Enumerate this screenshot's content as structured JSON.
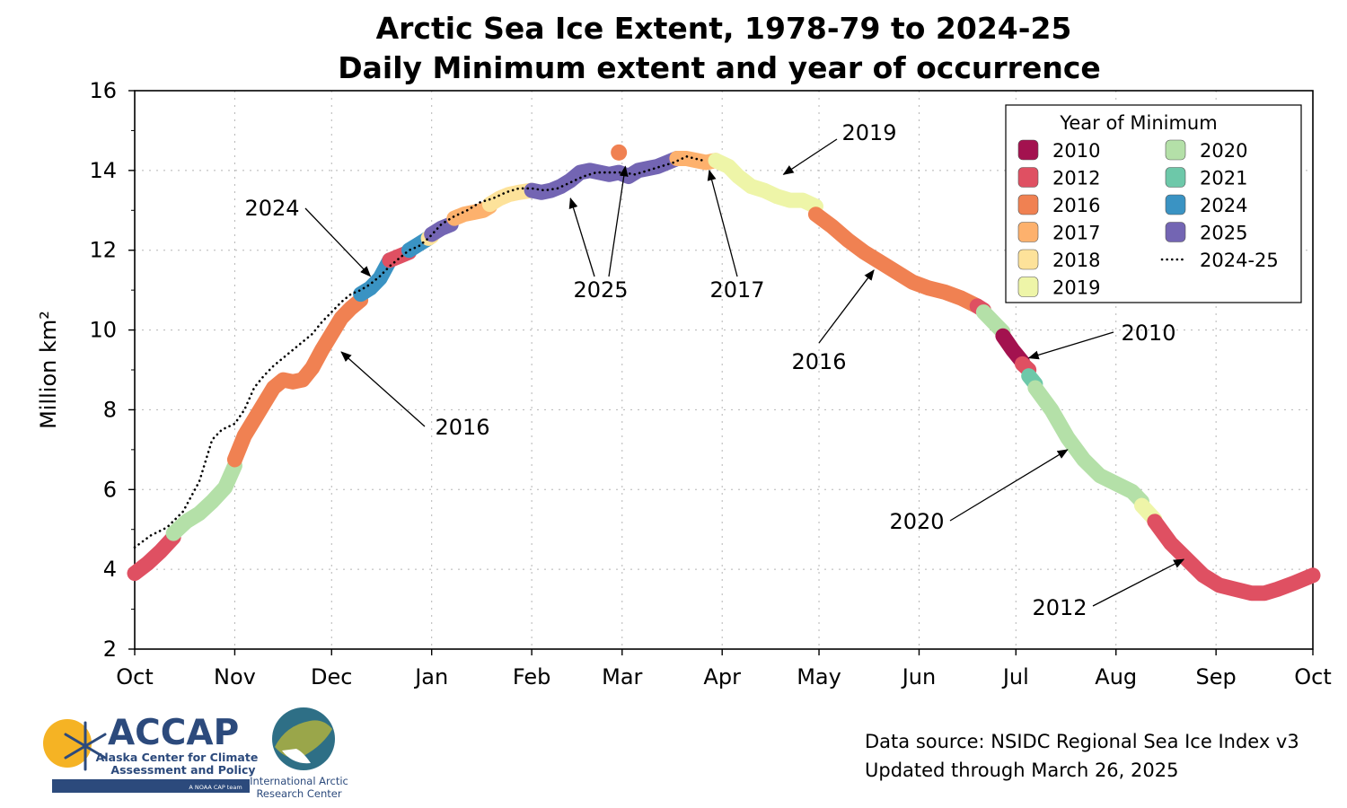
{
  "chart_data": {
    "type": "line",
    "title": "Arctic Sea Ice Extent, 1978-79 to 2024-25",
    "subtitle": "Daily Minimum extent and year of occurrence",
    "xlabel": "",
    "ylabel": "Million km²",
    "ylim": [
      2,
      16
    ],
    "yticks": [
      2,
      4,
      6,
      8,
      10,
      12,
      14,
      16
    ],
    "xlim": [
      "Oct 1",
      "Oct 1"
    ],
    "xticks": [
      "Oct",
      "Nov",
      "Dec",
      "Jan",
      "Feb",
      "Mar",
      "Apr",
      "May",
      "Jun",
      "Jul",
      "Aug",
      "Sep",
      "Oct"
    ],
    "grid": true,
    "legend_title": "Year of Minimum",
    "legend_placement": "top-right",
    "series": [
      {
        "name": "Daily minimum",
        "style": "thick colored by year of minimum",
        "segments": [
          {
            "year": "2012",
            "x": [
              "Oct 1",
              "Oct 5",
              "Oct 9",
              "Oct 13"
            ],
            "y": [
              3.9,
              4.15,
              4.45,
              4.8
            ]
          },
          {
            "year": "2020",
            "x": [
              "Oct 13",
              "Oct 17",
              "Oct 21",
              "Oct 25",
              "Oct 29",
              "Nov 1"
            ],
            "y": [
              4.9,
              5.2,
              5.4,
              5.7,
              6.05,
              6.6
            ]
          },
          {
            "year": "2016",
            "x": [
              "Nov 1",
              "Nov 4",
              "Nov 7",
              "Nov 10",
              "Nov 13",
              "Nov 16",
              "Nov 19",
              "Nov 22",
              "Nov 25",
              "Nov 28",
              "Dec 1",
              "Dec 4",
              "Dec 7",
              "Dec 10"
            ],
            "y": [
              6.75,
              7.35,
              7.75,
              8.15,
              8.55,
              8.75,
              8.7,
              8.75,
              9.05,
              9.5,
              9.9,
              10.3,
              10.55,
              10.75
            ]
          },
          {
            "year": "2024",
            "x": [
              "Dec 10",
              "Dec 13",
              "Dec 16",
              "Dec 19"
            ],
            "y": [
              10.9,
              11.05,
              11.3,
              11.75
            ]
          },
          {
            "year": "2012",
            "x": [
              "Dec 19",
              "Dec 22",
              "Dec 25"
            ],
            "y": [
              11.75,
              11.85,
              11.95
            ]
          },
          {
            "year": "2024",
            "x": [
              "Dec 25",
              "Dec 28",
              "Dec 31"
            ],
            "y": [
              12.0,
              12.15,
              12.3
            ]
          },
          {
            "year": "2018",
            "x": [
              "Dec 31",
              "Jan 1"
            ],
            "y": [
              12.3,
              12.35
            ]
          },
          {
            "year": "2025",
            "x": [
              "Jan 1",
              "Jan 4",
              "Jan 7"
            ],
            "y": [
              12.4,
              12.55,
              12.65
            ]
          },
          {
            "year": "2017",
            "x": [
              "Jan 8",
              "Jan 11",
              "Jan 14",
              "Jan 17",
              "Jan 19"
            ],
            "y": [
              12.8,
              12.9,
              12.95,
              13.0,
              13.1
            ]
          },
          {
            "year": "2018",
            "x": [
              "Jan 19",
              "Jan 22",
              "Jan 25",
              "Jan 28",
              "Feb 1"
            ],
            "y": [
              13.15,
              13.3,
              13.4,
              13.45,
              13.5
            ]
          },
          {
            "year": "2025",
            "x": [
              "Feb 1",
              "Feb 4",
              "Feb 7",
              "Feb 10",
              "Feb 13",
              "Feb 16",
              "Feb 19",
              "Feb 22",
              "Feb 25",
              "Feb 28",
              "Mar 3",
              "Mar 6",
              "Mar 9",
              "Mar 12",
              "Mar 15",
              "Mar 18"
            ],
            "y": [
              13.5,
              13.45,
              13.5,
              13.6,
              13.75,
              13.95,
              14.0,
              13.95,
              13.9,
              13.95,
              13.85,
              14.0,
              14.05,
              14.1,
              14.2,
              14.3
            ]
          },
          {
            "year": "2017",
            "x": [
              "Mar 18",
              "Mar 21",
              "Mar 24",
              "Mar 27",
              "Mar 30"
            ],
            "y": [
              14.3,
              14.3,
              14.25,
              14.2,
              14.25
            ]
          },
          {
            "year": "2019",
            "x": [
              "Mar 30",
              "Apr 3",
              "Apr 6",
              "Apr 10",
              "Apr 14",
              "Apr 18",
              "Apr 22",
              "Apr 26",
              "Apr 30"
            ],
            "y": [
              14.25,
              14.1,
              13.85,
              13.6,
              13.5,
              13.35,
              13.25,
              13.25,
              13.1
            ]
          },
          {
            "year": "2016",
            "x": [
              "Apr 30",
              "May 5",
              "May 10",
              "May 15",
              "May 20",
              "May 25",
              "May 30",
              "Jun 4",
              "Jun 9",
              "Jun 14",
              "Jun 19"
            ],
            "y": [
              12.9,
              12.6,
              12.25,
              11.95,
              11.7,
              11.45,
              11.2,
              11.05,
              10.95,
              10.8,
              10.6
            ]
          },
          {
            "year": "2012",
            "x": [
              "Jun 19",
              "Jun 21"
            ],
            "y": [
              10.6,
              10.5
            ]
          },
          {
            "year": "2020",
            "x": [
              "Jun 21",
              "Jun 24",
              "Jun 27"
            ],
            "y": [
              10.45,
              10.2,
              9.95
            ]
          },
          {
            "year": "2010",
            "x": [
              "Jun 27",
              "Jun 30",
              "Jul 3"
            ],
            "y": [
              9.85,
              9.5,
              9.2
            ]
          },
          {
            "year": "2012",
            "x": [
              "Jul 3",
              "Jul 5"
            ],
            "y": [
              9.15,
              9.0
            ]
          },
          {
            "year": "2021",
            "x": [
              "Jul 5",
              "Jul 7"
            ],
            "y": [
              8.85,
              8.65
            ]
          },
          {
            "year": "2020",
            "x": [
              "Jul 7",
              "Jul 12",
              "Jul 17",
              "Jul 22",
              "Jul 27",
              "Aug 1",
              "Aug 6",
              "Aug 9"
            ],
            "y": [
              8.55,
              8.0,
              7.3,
              6.75,
              6.35,
              6.15,
              5.95,
              5.7
            ]
          },
          {
            "year": "2019",
            "x": [
              "Aug 9",
              "Aug 13"
            ],
            "y": [
              5.6,
              5.25
            ]
          },
          {
            "year": "2012",
            "x": [
              "Aug 13",
              "Aug 18",
              "Aug 23",
              "Aug 28",
              "Sep 2",
              "Sep 7",
              "Sep 12",
              "Sep 16",
              "Sep 20",
              "Sep 25",
              "Oct 1"
            ],
            "y": [
              5.2,
              4.65,
              4.25,
              3.85,
              3.6,
              3.5,
              3.4,
              3.4,
              3.5,
              3.65,
              3.85
            ]
          }
        ]
      },
      {
        "name": "2024-25",
        "style": "dotted black",
        "x": [
          "Oct 1",
          "Oct 6",
          "Oct 11",
          "Oct 16",
          "Oct 21",
          "Oct 25",
          "Oct 28",
          "Nov 1",
          "Nov 4",
          "Nov 7",
          "Nov 10",
          "Nov 13",
          "Nov 16",
          "Nov 19",
          "Nov 22",
          "Nov 25",
          "Nov 28",
          "Dec 1",
          "Dec 4",
          "Dec 7",
          "Dec 10",
          "Dec 13",
          "Dec 16",
          "Dec 19",
          "Dec 22",
          "Dec 25",
          "Dec 28",
          "Dec 31",
          "Jan 4",
          "Jan 8",
          "Jan 12",
          "Jan 16",
          "Jan 20",
          "Jan 24",
          "Jan 28",
          "Feb 1",
          "Feb 5",
          "Feb 9",
          "Feb 13",
          "Feb 17",
          "Feb 21",
          "Feb 25",
          "Mar 1",
          "Mar 5",
          "Mar 9",
          "Mar 13",
          "Mar 17",
          "Mar 21",
          "Mar 26"
        ],
        "y": [
          4.55,
          4.85,
          5.05,
          5.45,
          6.2,
          7.25,
          7.5,
          7.65,
          8.0,
          8.55,
          8.85,
          9.1,
          9.3,
          9.5,
          9.7,
          9.9,
          10.2,
          10.45,
          10.7,
          10.9,
          11.0,
          11.15,
          11.35,
          11.6,
          11.8,
          12.0,
          12.1,
          12.3,
          12.65,
          12.85,
          13.0,
          13.2,
          13.3,
          13.45,
          13.55,
          13.55,
          13.5,
          13.55,
          13.7,
          13.85,
          13.95,
          13.95,
          13.95,
          13.9,
          14.0,
          14.1,
          14.2,
          14.35,
          14.25
        ]
      }
    ],
    "isolated_points": [
      {
        "year": "2016",
        "x": "Feb 28",
        "y": 14.45
      }
    ],
    "legend": [
      {
        "label": "2010",
        "color": "#a3124f"
      },
      {
        "label": "2012",
        "color": "#df5062"
      },
      {
        "label": "2016",
        "color": "#f08152"
      },
      {
        "label": "2017",
        "color": "#fdb16d"
      },
      {
        "label": "2018",
        "color": "#fde29a"
      },
      {
        "label": "2019",
        "color": "#eef5a8"
      },
      {
        "label": "2020",
        "color": "#b4e0a8"
      },
      {
        "label": "2021",
        "color": "#6dc8a9"
      },
      {
        "label": "2024",
        "color": "#3a93c3"
      },
      {
        "label": "2025",
        "color": "#7365b3"
      },
      {
        "label": "2024-25",
        "color": "#000000"
      }
    ],
    "annotations": [
      {
        "text": "2024",
        "points_to_x": "Dec 13",
        "points_to_y": 11.35
      },
      {
        "text": "2016",
        "points_to_x": "Dec 4",
        "points_to_y": 9.45
      },
      {
        "text": "2025",
        "points_to_x": "Feb 13",
        "points_to_y": 13.3
      },
      {
        "text": "2025",
        "points_to_x": "Mar 2",
        "points_to_y": 14.1
      },
      {
        "text": "2017",
        "points_to_x": "Mar 28",
        "points_to_y": 14.0
      },
      {
        "text": "2019",
        "points_to_x": "Apr 20",
        "points_to_y": 13.9
      },
      {
        "text": "2016",
        "points_to_x": "May 18",
        "points_to_y": 11.5
      },
      {
        "text": "2010",
        "points_to_x": "Jul 5",
        "points_to_y": 9.3
      },
      {
        "text": "2020",
        "points_to_x": "Jul 17",
        "points_to_y": 7.0
      },
      {
        "text": "2012",
        "points_to_x": "Aug 22",
        "points_to_y": 4.25
      }
    ]
  },
  "footer": {
    "source_line1": "Data source: NSIDC Regional Sea Ice Index v3",
    "source_line2": "Updated through March 26, 2025"
  },
  "logos": {
    "accap_name": "ACCAP",
    "accap_line1": "Alaska Center for Climate",
    "accap_line2": "Assessment and Policy",
    "accap_tag": "A NOAA CAP team",
    "iarc_line1": "International Arctic",
    "iarc_line2": "Research Center"
  }
}
